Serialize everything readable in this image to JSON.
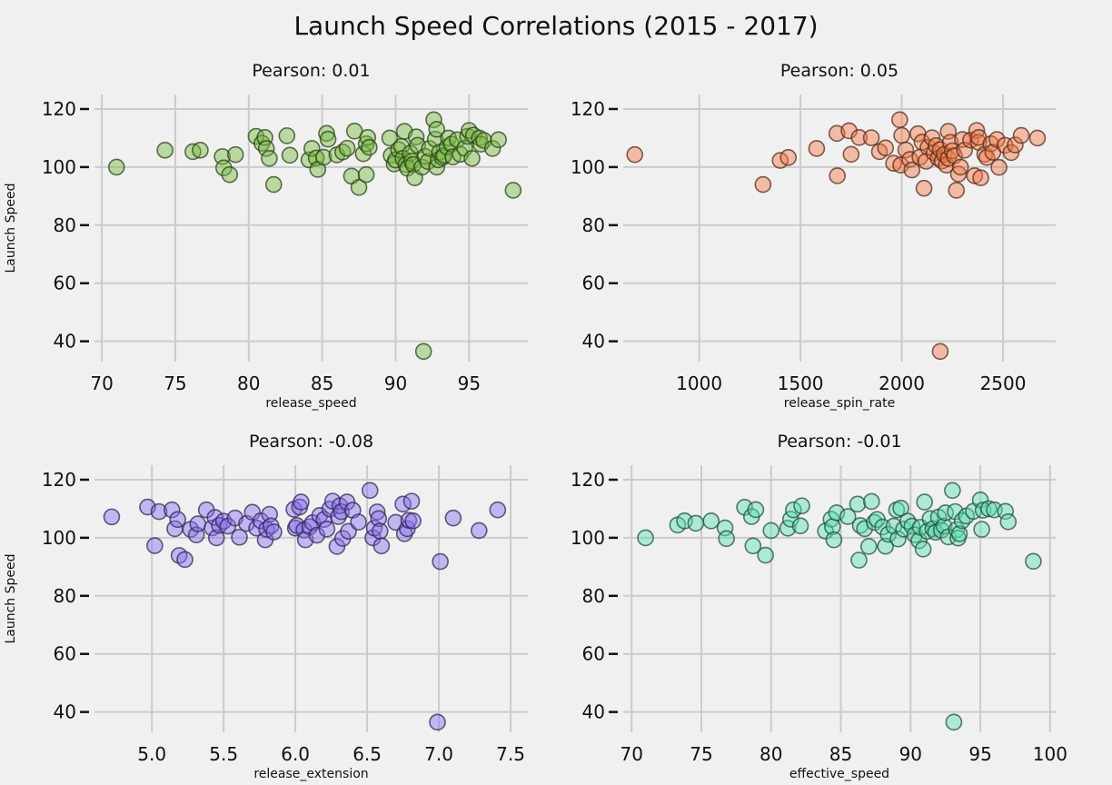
{
  "figure": {
    "title": "Launch Speed Correlations (2015 - 2017)"
  },
  "chart_data": [
    {
      "type": "scatter",
      "title": "Pearson: 0.01",
      "xlabel": "release_speed",
      "ylabel": "Launch Speed",
      "xlim": [
        69.5,
        99.0
      ],
      "ylim": [
        33,
        125
      ],
      "xticks": [
        70,
        75,
        80,
        85,
        90,
        95
      ],
      "yticks": [
        40,
        60,
        80,
        100,
        120
      ],
      "grid": true,
      "color": "#77bb41",
      "points": [
        [
          71,
          100
        ],
        [
          74.3,
          105.8
        ],
        [
          76.2,
          105.3
        ],
        [
          76.7,
          105.8
        ],
        [
          78.2,
          103.6
        ],
        [
          78.3,
          99.7
        ],
        [
          78.7,
          97.4
        ],
        [
          79.1,
          104.3
        ],
        [
          80.5,
          110.6
        ],
        [
          80.9,
          108.2
        ],
        [
          81.1,
          110.2
        ],
        [
          81.2,
          106.4
        ],
        [
          81.4,
          103.0
        ],
        [
          81.7,
          94.0
        ],
        [
          82.6,
          110.8
        ],
        [
          82.8,
          104.1
        ],
        [
          84.1,
          102.5
        ],
        [
          84.3,
          106.4
        ],
        [
          84.6,
          103.1
        ],
        [
          84.7,
          99.2
        ],
        [
          85.1,
          103.4
        ],
        [
          85.3,
          111.6
        ],
        [
          85.4,
          109.6
        ],
        [
          86.0,
          104.2
        ],
        [
          86.4,
          105.2
        ],
        [
          86.7,
          106.5
        ],
        [
          87.0,
          96.9
        ],
        [
          87.2,
          112.4
        ],
        [
          87.5,
          93.0
        ],
        [
          87.8,
          104.6
        ],
        [
          88.0,
          97.4
        ],
        [
          88.0,
          108.0
        ],
        [
          88.1,
          110.2
        ],
        [
          88.2,
          106.8
        ],
        [
          89.6,
          110.0
        ],
        [
          89.7,
          104.0
        ],
        [
          89.9,
          101.1
        ],
        [
          90.0,
          102.4
        ],
        [
          90.2,
          106.0
        ],
        [
          90.4,
          107.1
        ],
        [
          90.5,
          103.0
        ],
        [
          90.6,
          112.3
        ],
        [
          90.7,
          100.9
        ],
        [
          90.8,
          99.6
        ],
        [
          91.0,
          104.8
        ],
        [
          91.1,
          102.1
        ],
        [
          91.2,
          100.9
        ],
        [
          91.3,
          96.3
        ],
        [
          91.4,
          110.4
        ],
        [
          91.5,
          107.5
        ],
        [
          91.8,
          100.0
        ],
        [
          91.9,
          36.5
        ],
        [
          92.0,
          103.7
        ],
        [
          92.2,
          101.9
        ],
        [
          92.3,
          106.4
        ],
        [
          92.6,
          116.3
        ],
        [
          92.7,
          109.6
        ],
        [
          92.8,
          100.0
        ],
        [
          92.8,
          113.0
        ],
        [
          92.9,
          102.5
        ],
        [
          93.0,
          105.1
        ],
        [
          93.2,
          103.3
        ],
        [
          93.3,
          104.0
        ],
        [
          93.5,
          106.9
        ],
        [
          93.6,
          110.0
        ],
        [
          93.8,
          107.9
        ],
        [
          93.9,
          103.5
        ],
        [
          94.2,
          109.4
        ],
        [
          94.4,
          104.4
        ],
        [
          94.7,
          106.5
        ],
        [
          94.9,
          110.6
        ],
        [
          95.0,
          112.6
        ],
        [
          95.2,
          103.0
        ],
        [
          95.3,
          111.0
        ],
        [
          95.7,
          110.0
        ],
        [
          95.8,
          107.9
        ],
        [
          96.0,
          109.2
        ],
        [
          96.6,
          106.4
        ],
        [
          97.0,
          109.4
        ],
        [
          98.0,
          92.0
        ]
      ]
    },
    {
      "type": "scatter",
      "title": "Pearson: 0.05",
      "xlabel": "release_spin_rate",
      "ylabel": "",
      "xlim": [
        625,
        2760
      ],
      "ylim": [
        33,
        125
      ],
      "xticks": [
        1000,
        1500,
        2000,
        2500
      ],
      "yticks": [
        40,
        60,
        80,
        100,
        120
      ],
      "grid": true,
      "color": "#f47a4a",
      "points": [
        [
          682,
          104.3
        ],
        [
          1315,
          94.0
        ],
        [
          1400,
          102.3
        ],
        [
          1440,
          103.3
        ],
        [
          1580,
          106.4
        ],
        [
          1680,
          111.6
        ],
        [
          1682,
          97.0
        ],
        [
          1740,
          112.5
        ],
        [
          1750,
          104.4
        ],
        [
          1790,
          110.2
        ],
        [
          1850,
          110.1
        ],
        [
          1890,
          105.3
        ],
        [
          1920,
          106.6
        ],
        [
          1960,
          101.3
        ],
        [
          1990,
          116.3
        ],
        [
          1995,
          100.7
        ],
        [
          2000,
          110.9
        ],
        [
          2020,
          105.9
        ],
        [
          2040,
          102.6
        ],
        [
          2050,
          99.0
        ],
        [
          2080,
          111.5
        ],
        [
          2090,
          103.4
        ],
        [
          2100,
          108.6
        ],
        [
          2110,
          92.7
        ],
        [
          2120,
          102.0
        ],
        [
          2130,
          106.8
        ],
        [
          2150,
          110.1
        ],
        [
          2160,
          104.9
        ],
        [
          2170,
          107.4
        ],
        [
          2180,
          103.0
        ],
        [
          2190,
          106.0
        ],
        [
          2190,
          36.5
        ],
        [
          2200,
          102.1
        ],
        [
          2210,
          104.4
        ],
        [
          2220,
          100.7
        ],
        [
          2230,
          103.0
        ],
        [
          2230,
          112.3
        ],
        [
          2240,
          108.5
        ],
        [
          2250,
          105.6
        ],
        [
          2260,
          103.9
        ],
        [
          2270,
          92.0
        ],
        [
          2280,
          97.6
        ],
        [
          2290,
          100.0
        ],
        [
          2300,
          109.5
        ],
        [
          2310,
          105.8
        ],
        [
          2340,
          109.3
        ],
        [
          2360,
          97.0
        ],
        [
          2370,
          112.6
        ],
        [
          2380,
          108.5
        ],
        [
          2380,
          110.2
        ],
        [
          2390,
          96.3
        ],
        [
          2410,
          104.4
        ],
        [
          2420,
          103.3
        ],
        [
          2440,
          108.0
        ],
        [
          2450,
          105.1
        ],
        [
          2470,
          109.5
        ],
        [
          2480,
          99.9
        ],
        [
          2510,
          107.5
        ],
        [
          2540,
          105.0
        ],
        [
          2560,
          107.6
        ],
        [
          2590,
          110.9
        ],
        [
          2670,
          110.0
        ]
      ]
    },
    {
      "type": "scatter",
      "title": "Pearson: -0.08",
      "xlabel": "release_extension",
      "ylabel": "Launch Speed",
      "xlim": [
        4.6,
        7.62
      ],
      "ylim": [
        33,
        125
      ],
      "xticks": [
        5.0,
        5.5,
        6.0,
        6.5,
        7.0,
        7.5
      ],
      "yticks": [
        40,
        60,
        80,
        100,
        120
      ],
      "grid": true,
      "color": "#8a6ff0",
      "points": [
        [
          4.72,
          107.2
        ],
        [
          4.97,
          110.6
        ],
        [
          5.02,
          97.3
        ],
        [
          5.05,
          109.0
        ],
        [
          5.14,
          109.6
        ],
        [
          5.16,
          103.1
        ],
        [
          5.18,
          106.3
        ],
        [
          5.19,
          93.9
        ],
        [
          5.23,
          92.5
        ],
        [
          5.27,
          102.9
        ],
        [
          5.31,
          101.0
        ],
        [
          5.32,
          104.8
        ],
        [
          5.38,
          109.6
        ],
        [
          5.42,
          103.4
        ],
        [
          5.44,
          107.0
        ],
        [
          5.45,
          100.0
        ],
        [
          5.47,
          104.3
        ],
        [
          5.5,
          105.7
        ],
        [
          5.53,
          104.0
        ],
        [
          5.58,
          106.8
        ],
        [
          5.61,
          100.2
        ],
        [
          5.66,
          104.9
        ],
        [
          5.7,
          108.8
        ],
        [
          5.73,
          103.3
        ],
        [
          5.76,
          105.8
        ],
        [
          5.79,
          99.3
        ],
        [
          5.8,
          102.9
        ],
        [
          5.82,
          108.1
        ],
        [
          5.83,
          104.1
        ],
        [
          5.85,
          102.0
        ],
        [
          5.99,
          109.8
        ],
        [
          6.0,
          103.3
        ],
        [
          6.01,
          104.2
        ],
        [
          6.03,
          110.6
        ],
        [
          6.04,
          112.3
        ],
        [
          6.06,
          102.7
        ],
        [
          6.07,
          99.3
        ],
        [
          6.1,
          103.8
        ],
        [
          6.12,
          105.2
        ],
        [
          6.15,
          100.9
        ],
        [
          6.17,
          107.7
        ],
        [
          6.2,
          106.3
        ],
        [
          6.22,
          103.0
        ],
        [
          6.24,
          109.9
        ],
        [
          6.26,
          112.6
        ],
        [
          6.29,
          97.0
        ],
        [
          6.3,
          107.3
        ],
        [
          6.31,
          111.0
        ],
        [
          6.32,
          109.0
        ],
        [
          6.33,
          99.8
        ],
        [
          6.36,
          112.3
        ],
        [
          6.37,
          102.2
        ],
        [
          6.4,
          109.5
        ],
        [
          6.44,
          105.4
        ],
        [
          6.52,
          116.3
        ],
        [
          6.54,
          100.0
        ],
        [
          6.55,
          103.3
        ],
        [
          6.57,
          108.9
        ],
        [
          6.58,
          106.6
        ],
        [
          6.59,
          102.3
        ],
        [
          6.6,
          97.2
        ],
        [
          6.7,
          105.3
        ],
        [
          6.75,
          111.6
        ],
        [
          6.76,
          101.4
        ],
        [
          6.78,
          103.1
        ],
        [
          6.79,
          106.0
        ],
        [
          6.81,
          112.6
        ],
        [
          6.82,
          105.8
        ],
        [
          6.99,
          36.5
        ],
        [
          7.01,
          91.8
        ],
        [
          7.1,
          106.8
        ],
        [
          7.28,
          102.5
        ],
        [
          7.41,
          109.6
        ]
      ]
    },
    {
      "type": "scatter",
      "title": "Pearson: -0.01",
      "xlabel": "effective_speed",
      "ylabel": "",
      "xlim": [
        69.4,
        100.4
      ],
      "ylim": [
        33,
        125
      ],
      "xticks": [
        70,
        75,
        80,
        85,
        90,
        95,
        100
      ],
      "yticks": [
        40,
        60,
        80,
        100,
        120
      ],
      "grid": true,
      "color": "#5de0b0",
      "points": [
        [
          71.0,
          100.0
        ],
        [
          73.3,
          104.4
        ],
        [
          73.8,
          105.8
        ],
        [
          74.6,
          105.0
        ],
        [
          75.7,
          105.8
        ],
        [
          76.7,
          103.4
        ],
        [
          76.8,
          99.7
        ],
        [
          78.1,
          110.5
        ],
        [
          78.6,
          107.3
        ],
        [
          78.7,
          97.2
        ],
        [
          78.9,
          109.7
        ],
        [
          79.6,
          94.0
        ],
        [
          80.0,
          102.5
        ],
        [
          81.2,
          103.3
        ],
        [
          81.4,
          106.4
        ],
        [
          81.6,
          109.6
        ],
        [
          82.1,
          104.1
        ],
        [
          82.2,
          111.0
        ],
        [
          83.9,
          102.3
        ],
        [
          84.3,
          106.4
        ],
        [
          84.4,
          103.8
        ],
        [
          84.5,
          99.3
        ],
        [
          84.7,
          108.6
        ],
        [
          85.5,
          107.3
        ],
        [
          86.2,
          111.6
        ],
        [
          86.3,
          92.3
        ],
        [
          86.4,
          104.2
        ],
        [
          86.7,
          103.1
        ],
        [
          87.0,
          97.0
        ],
        [
          87.2,
          112.5
        ],
        [
          87.4,
          105.3
        ],
        [
          87.6,
          106.3
        ],
        [
          88.0,
          103.7
        ],
        [
          88.2,
          97.1
        ],
        [
          88.4,
          101.2
        ],
        [
          88.8,
          104.0
        ],
        [
          89.0,
          109.6
        ],
        [
          89.1,
          99.6
        ],
        [
          89.3,
          110.2
        ],
        [
          89.5,
          103.0
        ],
        [
          89.8,
          105.7
        ],
        [
          90.1,
          104.0
        ],
        [
          90.3,
          101.0
        ],
        [
          90.6,
          99.0
        ],
        [
          90.7,
          103.6
        ],
        [
          90.9,
          96.1
        ],
        [
          91.0,
          112.3
        ],
        [
          91.2,
          102.2
        ],
        [
          91.4,
          106.6
        ],
        [
          91.6,
          103.1
        ],
        [
          91.8,
          101.9
        ],
        [
          92.0,
          107.1
        ],
        [
          92.2,
          102.6
        ],
        [
          92.4,
          104.0
        ],
        [
          92.5,
          108.6
        ],
        [
          92.7,
          100.3
        ],
        [
          93.0,
          116.3
        ],
        [
          93.1,
          36.5
        ],
        [
          93.2,
          109.0
        ],
        [
          93.3,
          102.8
        ],
        [
          93.4,
          99.9
        ],
        [
          93.5,
          101.4
        ],
        [
          93.7,
          105.9
        ],
        [
          94.0,
          107.5
        ],
        [
          94.5,
          109.1
        ],
        [
          95.0,
          113.0
        ],
        [
          95.1,
          102.9
        ],
        [
          95.2,
          109.5
        ],
        [
          95.6,
          110.0
        ],
        [
          96.0,
          109.6
        ],
        [
          96.8,
          109.1
        ],
        [
          97.0,
          105.5
        ],
        [
          98.8,
          91.9
        ]
      ]
    }
  ]
}
